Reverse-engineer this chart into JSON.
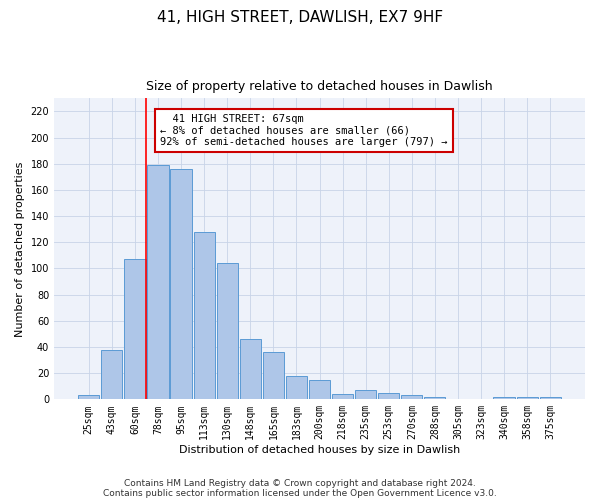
{
  "title": "41, HIGH STREET, DAWLISH, EX7 9HF",
  "subtitle": "Size of property relative to detached houses in Dawlish",
  "xlabel": "Distribution of detached houses by size in Dawlish",
  "ylabel": "Number of detached properties",
  "categories": [
    "25sqm",
    "43sqm",
    "60sqm",
    "78sqm",
    "95sqm",
    "113sqm",
    "130sqm",
    "148sqm",
    "165sqm",
    "183sqm",
    "200sqm",
    "218sqm",
    "235sqm",
    "253sqm",
    "270sqm",
    "288sqm",
    "305sqm",
    "323sqm",
    "340sqm",
    "358sqm",
    "375sqm"
  ],
  "values": [
    3,
    38,
    107,
    179,
    176,
    128,
    104,
    46,
    36,
    18,
    15,
    4,
    7,
    5,
    3,
    2,
    0,
    0,
    2,
    2,
    2
  ],
  "bar_color": "#aec6e8",
  "bar_edge_color": "#5b9bd5",
  "red_line_x": 2.47,
  "ylim": [
    0,
    230
  ],
  "yticks": [
    0,
    20,
    40,
    60,
    80,
    100,
    120,
    140,
    160,
    180,
    200,
    220
  ],
  "annotation_text": "  41 HIGH STREET: 67sqm\n← 8% of detached houses are smaller (66)\n92% of semi-detached houses are larger (797) →",
  "annotation_box_color": "#ffffff",
  "annotation_box_edge_color": "#cc0000",
  "footer_line1": "Contains HM Land Registry data © Crown copyright and database right 2024.",
  "footer_line2": "Contains public sector information licensed under the Open Government Licence v3.0.",
  "title_fontsize": 11,
  "subtitle_fontsize": 9,
  "axis_label_fontsize": 8,
  "tick_fontsize": 7,
  "footer_fontsize": 6.5,
  "annotation_fontsize": 7.5,
  "grid_color": "#c8d4e8",
  "bg_color": "#eef2fa"
}
